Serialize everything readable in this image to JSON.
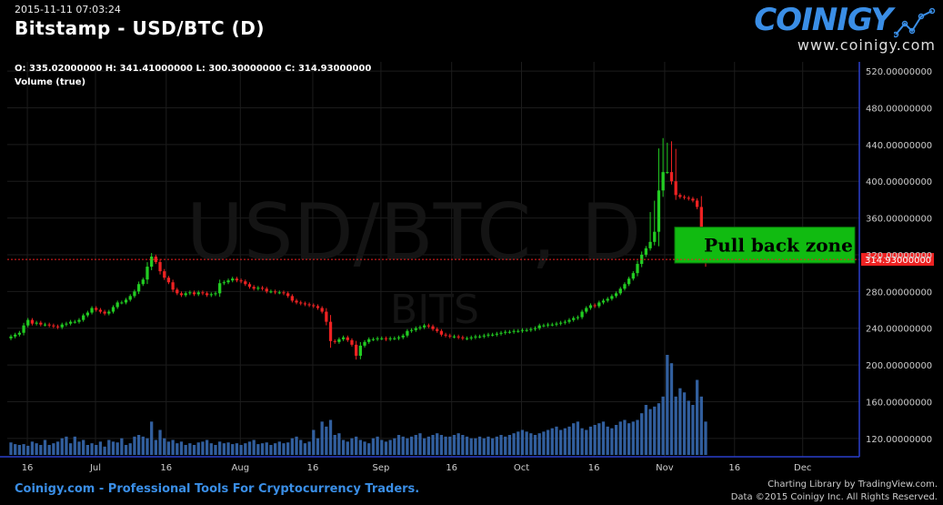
{
  "header": {
    "timestamp": "2015-11-11 07:03:24",
    "title": "Bitstamp - USD/BTC (D)",
    "ohlc": "O: 335.02000000 H: 341.41000000 L: 300.30000000 C: 314.93000000",
    "volume_label": "Volume (true)"
  },
  "brand": {
    "logo": "COINIGY",
    "url": "www.coinigy.com"
  },
  "watermark": {
    "main": "USD/BTC, D",
    "sub": "BITS"
  },
  "footer": {
    "left": "Coinigy.com - Professional Tools For Cryptocurrency Traders.",
    "right_line1": "Charting Library by TradingView.com.",
    "right_line2": "Data ©2015 Coinigy Inc. All Rights Reserved."
  },
  "colors": {
    "up": "#22cc22",
    "down": "#ee2222",
    "volume": "#3a6fb8",
    "axis": "#2a3fcc",
    "zone": "#11bb11",
    "brand": "#3a8ee6"
  },
  "chart_data": {
    "type": "candlestick",
    "exchange": "Bitstamp",
    "pair": "USD/BTC",
    "interval": "D",
    "xlabel": "",
    "ylabel": "",
    "ylim": [
      100,
      530
    ],
    "y_ticks": [
      "120.00000000",
      "160.00000000",
      "200.00000000",
      "240.00000000",
      "280.00000000",
      "320.00000000",
      "360.00000000",
      "400.00000000",
      "440.00000000",
      "480.00000000",
      "520.00000000"
    ],
    "x_ticks": [
      "16",
      "Jul",
      "16",
      "Aug",
      "16",
      "Sep",
      "16",
      "Oct",
      "16",
      "Nov",
      "16",
      "Dec"
    ],
    "last_price_label": "314.93000000",
    "last_price": 314.93,
    "annotation": {
      "text": "Pull back zone",
      "price_low": 311,
      "price_high": 350
    },
    "series": [
      {
        "name": "Price",
        "closes": [
          231,
          233,
          235,
          243,
          249,
          245,
          246,
          244,
          244,
          243,
          242,
          241,
          244,
          245,
          247,
          247,
          249,
          254,
          257,
          262,
          260,
          258,
          256,
          258,
          263,
          268,
          268,
          271,
          275,
          280,
          288,
          293,
          307,
          318,
          312,
          302,
          295,
          290,
          282,
          278,
          276,
          278,
          279,
          277,
          279,
          278,
          276,
          277,
          278,
          289,
          290,
          292,
          294,
          292,
          291,
          288,
          285,
          283,
          284,
          283,
          280,
          280,
          279,
          279,
          278,
          275,
          270,
          268,
          267,
          266,
          265,
          264,
          262,
          258,
          247,
          226,
          225,
          228,
          230,
          227,
          222,
          210,
          221,
          225,
          228,
          228,
          229,
          229,
          228,
          229,
          229,
          230,
          232,
          237,
          238,
          240,
          241,
          243,
          242,
          239,
          237,
          233,
          232,
          231,
          231,
          230,
          229,
          229,
          230,
          231,
          231,
          232,
          233,
          233,
          234,
          235,
          236,
          236,
          237,
          237,
          238,
          238,
          239,
          240,
          243,
          243,
          244,
          244,
          245,
          246,
          247,
          249,
          251,
          252,
          258,
          262,
          265,
          264,
          268,
          270,
          272,
          275,
          278,
          283,
          288,
          294,
          300,
          310,
          320,
          327,
          334,
          345,
          390,
          410,
          410,
          400,
          385,
          383,
          382,
          381,
          379,
          372,
          338,
          315
        ],
        "volumes": [
          15,
          13,
          12,
          13,
          11,
          16,
          14,
          12,
          18,
          12,
          14,
          16,
          20,
          22,
          14,
          22,
          16,
          18,
          12,
          14,
          12,
          16,
          10,
          18,
          16,
          15,
          20,
          12,
          14,
          22,
          24,
          22,
          20,
          40,
          18,
          30,
          20,
          16,
          18,
          14,
          16,
          12,
          14,
          12,
          15,
          16,
          18,
          14,
          12,
          16,
          14,
          15,
          13,
          14,
          12,
          14,
          16,
          18,
          13,
          14,
          15,
          12,
          14,
          16,
          14,
          15,
          20,
          22,
          18,
          14,
          16,
          30,
          20,
          40,
          34,
          42,
          24,
          26,
          18,
          16,
          20,
          22,
          18,
          16,
          14,
          20,
          22,
          18,
          16,
          18,
          20,
          24,
          22,
          20,
          22,
          24,
          26,
          20,
          22,
          24,
          26,
          24,
          22,
          22,
          24,
          26,
          24,
          22,
          20,
          20,
          22,
          20,
          22,
          20,
          22,
          24,
          22,
          24,
          26,
          28,
          30,
          28,
          26,
          24,
          26,
          28,
          30,
          32,
          34,
          30,
          32,
          34,
          38,
          40,
          32,
          30,
          34,
          36,
          38,
          40,
          34,
          32,
          36,
          40,
          42,
          38,
          40,
          42,
          50,
          60,
          55,
          58,
          62,
          70,
          120,
          110,
          70,
          80,
          75,
          65,
          60,
          90,
          70,
          40
        ]
      }
    ]
  }
}
